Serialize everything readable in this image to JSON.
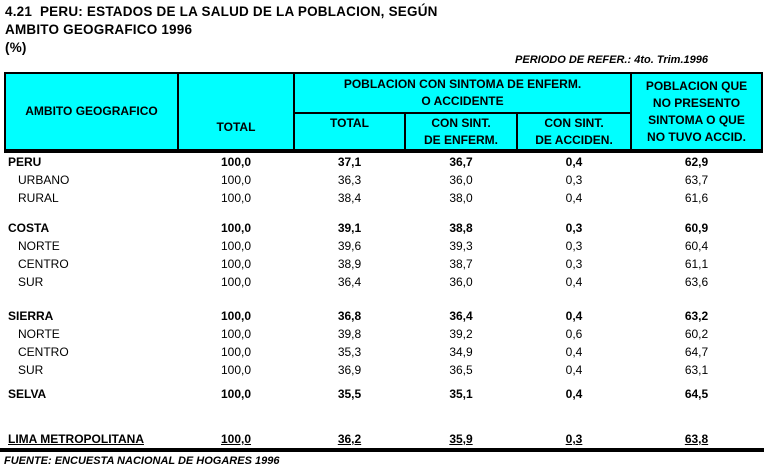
{
  "title": {
    "line1": "4.21  PERU: ESTADOS DE LA SALUD DE LA POBLACION, SEGÚN",
    "line2": "AMBITO GEOGRAFICO 1996",
    "line3": "(%)",
    "period": "PERIODO DE REFER.: 4to. Trim.1996"
  },
  "colors": {
    "header_bg": "#00FFFF",
    "border": "#000000",
    "text": "#000000"
  },
  "table": {
    "header": {
      "col_ambito": "AMBITO GEOGRAFICO",
      "col_total": "TOTAL",
      "group_sintoma": "POBLACION CON SINTOMA DE ENFERM.\nO ACCIDENTE",
      "sub_total": "TOTAL",
      "sub_enferm": "CON SINT.\nDE ENFERM.",
      "sub_acciden": "CON SINT.\nDE ACCIDEN.",
      "col_no_sintoma": "POBLACION QUE\nNO PRESENTO\nSINTOMA O QUE\nNO TUVO ACCID."
    },
    "rows": [
      {
        "label": "PERU",
        "style": "section",
        "gap_before": 0,
        "values": [
          "100,0",
          "37,1",
          "36,7",
          "0,4",
          "62,9"
        ]
      },
      {
        "label": "URBANO",
        "style": "sub",
        "gap_before": 0,
        "values": [
          "100,0",
          "36,3",
          "36,0",
          "0,3",
          "63,7"
        ]
      },
      {
        "label": "RURAL",
        "style": "sub",
        "gap_before": 0,
        "values": [
          "100,0",
          "38,4",
          "38,0",
          "0,4",
          "61,6"
        ]
      },
      {
        "label": "COSTA",
        "style": "section",
        "gap_before": 12,
        "values": [
          "100,0",
          "39,1",
          "38,8",
          "0,3",
          "60,9"
        ]
      },
      {
        "label": "NORTE",
        "style": "sub",
        "gap_before": 0,
        "values": [
          "100,0",
          "39,6",
          "39,3",
          "0,3",
          "60,4"
        ]
      },
      {
        "label": "CENTRO",
        "style": "sub",
        "gap_before": 0,
        "values": [
          "100,0",
          "38,9",
          "38,7",
          "0,3",
          "61,1"
        ]
      },
      {
        "label": "SUR",
        "style": "sub",
        "gap_before": 0,
        "values": [
          "100,0",
          "36,4",
          "36,0",
          "0,4",
          "63,6"
        ]
      },
      {
        "label": "SIERRA",
        "style": "section",
        "gap_before": 16,
        "values": [
          "100,0",
          "36,8",
          "36,4",
          "0,4",
          "63,2"
        ]
      },
      {
        "label": "NORTE",
        "style": "sub",
        "gap_before": 0,
        "values": [
          "100,0",
          "39,8",
          "39,2",
          "0,6",
          "60,2"
        ]
      },
      {
        "label": "CENTRO",
        "style": "sub",
        "gap_before": 0,
        "values": [
          "100,0",
          "35,3",
          "34,9",
          "0,4",
          "64,7"
        ]
      },
      {
        "label": "SUR",
        "style": "sub",
        "gap_before": 0,
        "values": [
          "100,0",
          "36,9",
          "36,5",
          "0,4",
          "63,1"
        ]
      },
      {
        "label": "SELVA",
        "style": "section",
        "gap_before": 6,
        "values": [
          "100,0",
          "35,5",
          "35,1",
          "0,4",
          "64,5"
        ]
      },
      {
        "label": "LIMA METROPOLITANA",
        "style": "section-underline",
        "gap_before": 27,
        "values": [
          "100,0",
          "36,2",
          "35,9",
          "0,3",
          "63,8"
        ]
      }
    ]
  },
  "footer": {
    "source": "FUENTE: ENCUESTA NACIONAL DE HOGARES 1996"
  }
}
